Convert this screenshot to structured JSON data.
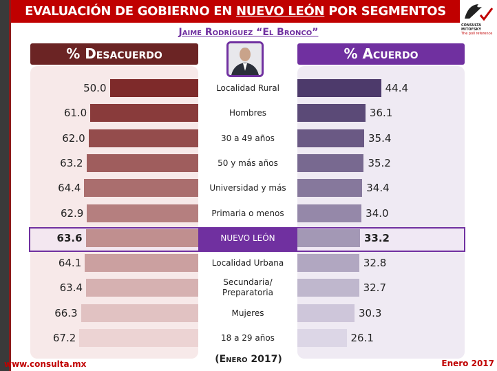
{
  "header": {
    "title_pre": "EVALUACIÓN DE GOBIERNO EN ",
    "title_underlined": "NUEVO LEÓN",
    "title_post": " POR SEGMENTOS",
    "logo_text": "CONSULTA MITOFSKY",
    "logo_tagline": "The poll reference"
  },
  "subtitle": "Jaime Rodríguez “El Bronco”",
  "chart_data": {
    "type": "bar",
    "title": "Evaluación de gobierno en Nuevo León por segmentos",
    "categories": [
      "Localidad Rural",
      "Hombres",
      "30 a 49 años",
      "50 y más años",
      "Universidad y más",
      "Primaria o menos",
      "NUEVO LEÓN",
      "Localidad Urbana",
      "Secundaria/ Preparatoria",
      "Mujeres",
      "18 a 29 años"
    ],
    "highlight": "NUEVO LEÓN",
    "series": [
      {
        "name": "% Desacuerdo",
        "values": [
          50.0,
          61.0,
          62.0,
          63.2,
          64.4,
          62.9,
          63.6,
          64.1,
          63.4,
          66.3,
          67.2
        ],
        "color_dark": "#7e2a2a",
        "color_light": "#ecd3d3"
      },
      {
        "name": "% Acuerdo",
        "values": [
          44.4,
          36.1,
          35.4,
          35.2,
          34.4,
          34.0,
          33.2,
          32.8,
          32.7,
          30.3,
          26.1
        ],
        "color_dark": "#4d3a6b",
        "color_light": "#dcd6e6"
      }
    ]
  },
  "footer": {
    "period": "(Enero 2017)",
    "url": "www.consulta.mx",
    "date": "Enero 2017"
  }
}
